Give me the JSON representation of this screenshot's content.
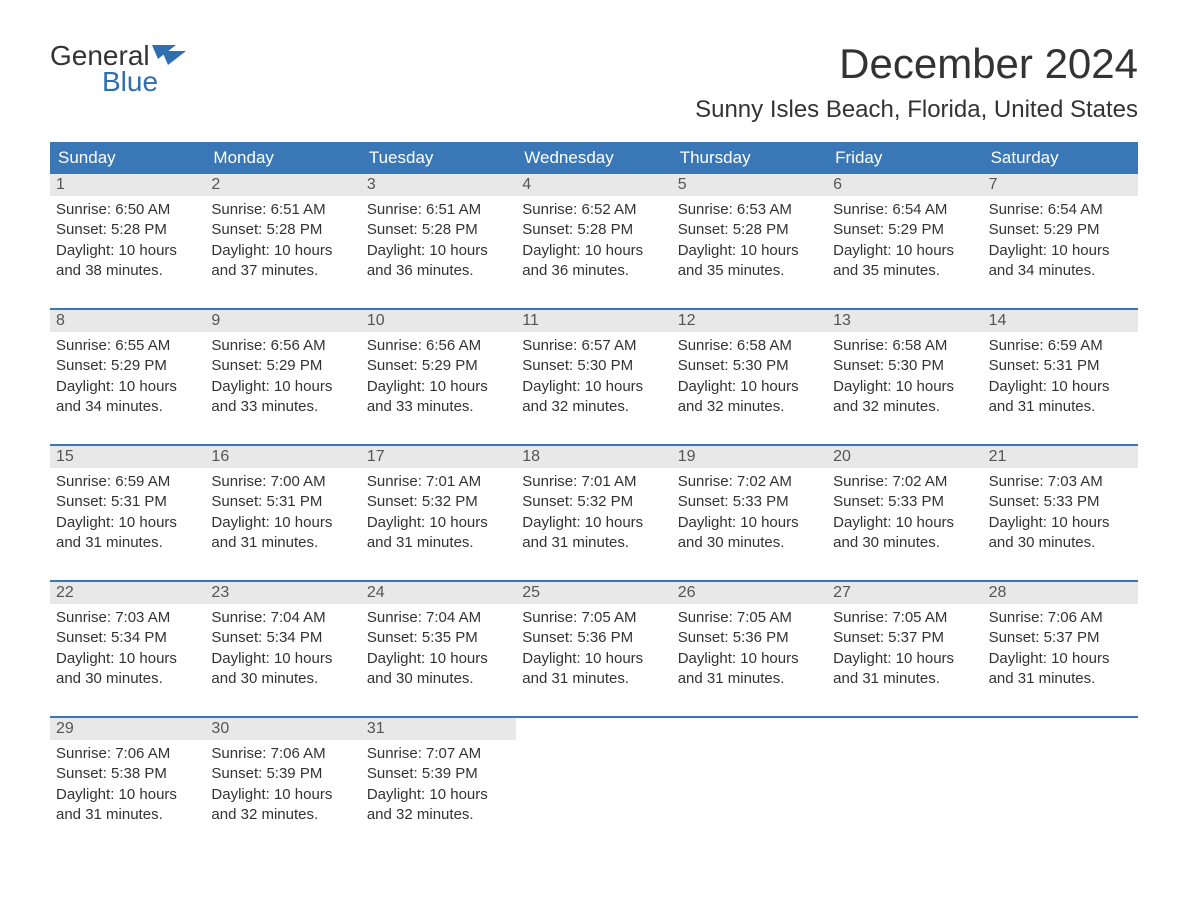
{
  "logo": {
    "line1": "General",
    "line2": "Blue",
    "brand_color": "#2f6fb0"
  },
  "title": "December 2024",
  "location": "Sunny Isles Beach, Florida, United States",
  "colors": {
    "header_bg": "#3a77b6",
    "header_text": "#ffffff",
    "daynum_bg": "#e8e8e8",
    "week_border": "#3a77b6",
    "text": "#333333",
    "background": "#ffffff"
  },
  "day_names": [
    "Sunday",
    "Monday",
    "Tuesday",
    "Wednesday",
    "Thursday",
    "Friday",
    "Saturday"
  ],
  "labels": {
    "sunrise": "Sunrise:",
    "sunset": "Sunset:",
    "daylight": "Daylight:"
  },
  "days": [
    {
      "n": 1,
      "sunrise": "6:50 AM",
      "sunset": "5:28 PM",
      "daylight": "10 hours and 38 minutes."
    },
    {
      "n": 2,
      "sunrise": "6:51 AM",
      "sunset": "5:28 PM",
      "daylight": "10 hours and 37 minutes."
    },
    {
      "n": 3,
      "sunrise": "6:51 AM",
      "sunset": "5:28 PM",
      "daylight": "10 hours and 36 minutes."
    },
    {
      "n": 4,
      "sunrise": "6:52 AM",
      "sunset": "5:28 PM",
      "daylight": "10 hours and 36 minutes."
    },
    {
      "n": 5,
      "sunrise": "6:53 AM",
      "sunset": "5:28 PM",
      "daylight": "10 hours and 35 minutes."
    },
    {
      "n": 6,
      "sunrise": "6:54 AM",
      "sunset": "5:29 PM",
      "daylight": "10 hours and 35 minutes."
    },
    {
      "n": 7,
      "sunrise": "6:54 AM",
      "sunset": "5:29 PM",
      "daylight": "10 hours and 34 minutes."
    },
    {
      "n": 8,
      "sunrise": "6:55 AM",
      "sunset": "5:29 PM",
      "daylight": "10 hours and 34 minutes."
    },
    {
      "n": 9,
      "sunrise": "6:56 AM",
      "sunset": "5:29 PM",
      "daylight": "10 hours and 33 minutes."
    },
    {
      "n": 10,
      "sunrise": "6:56 AM",
      "sunset": "5:29 PM",
      "daylight": "10 hours and 33 minutes."
    },
    {
      "n": 11,
      "sunrise": "6:57 AM",
      "sunset": "5:30 PM",
      "daylight": "10 hours and 32 minutes."
    },
    {
      "n": 12,
      "sunrise": "6:58 AM",
      "sunset": "5:30 PM",
      "daylight": "10 hours and 32 minutes."
    },
    {
      "n": 13,
      "sunrise": "6:58 AM",
      "sunset": "5:30 PM",
      "daylight": "10 hours and 32 minutes."
    },
    {
      "n": 14,
      "sunrise": "6:59 AM",
      "sunset": "5:31 PM",
      "daylight": "10 hours and 31 minutes."
    },
    {
      "n": 15,
      "sunrise": "6:59 AM",
      "sunset": "5:31 PM",
      "daylight": "10 hours and 31 minutes."
    },
    {
      "n": 16,
      "sunrise": "7:00 AM",
      "sunset": "5:31 PM",
      "daylight": "10 hours and 31 minutes."
    },
    {
      "n": 17,
      "sunrise": "7:01 AM",
      "sunset": "5:32 PM",
      "daylight": "10 hours and 31 minutes."
    },
    {
      "n": 18,
      "sunrise": "7:01 AM",
      "sunset": "5:32 PM",
      "daylight": "10 hours and 31 minutes."
    },
    {
      "n": 19,
      "sunrise": "7:02 AM",
      "sunset": "5:33 PM",
      "daylight": "10 hours and 30 minutes."
    },
    {
      "n": 20,
      "sunrise": "7:02 AM",
      "sunset": "5:33 PM",
      "daylight": "10 hours and 30 minutes."
    },
    {
      "n": 21,
      "sunrise": "7:03 AM",
      "sunset": "5:33 PM",
      "daylight": "10 hours and 30 minutes."
    },
    {
      "n": 22,
      "sunrise": "7:03 AM",
      "sunset": "5:34 PM",
      "daylight": "10 hours and 30 minutes."
    },
    {
      "n": 23,
      "sunrise": "7:04 AM",
      "sunset": "5:34 PM",
      "daylight": "10 hours and 30 minutes."
    },
    {
      "n": 24,
      "sunrise": "7:04 AM",
      "sunset": "5:35 PM",
      "daylight": "10 hours and 30 minutes."
    },
    {
      "n": 25,
      "sunrise": "7:05 AM",
      "sunset": "5:36 PM",
      "daylight": "10 hours and 31 minutes."
    },
    {
      "n": 26,
      "sunrise": "7:05 AM",
      "sunset": "5:36 PM",
      "daylight": "10 hours and 31 minutes."
    },
    {
      "n": 27,
      "sunrise": "7:05 AM",
      "sunset": "5:37 PM",
      "daylight": "10 hours and 31 minutes."
    },
    {
      "n": 28,
      "sunrise": "7:06 AM",
      "sunset": "5:37 PM",
      "daylight": "10 hours and 31 minutes."
    },
    {
      "n": 29,
      "sunrise": "7:06 AM",
      "sunset": "5:38 PM",
      "daylight": "10 hours and 31 minutes."
    },
    {
      "n": 30,
      "sunrise": "7:06 AM",
      "sunset": "5:39 PM",
      "daylight": "10 hours and 32 minutes."
    },
    {
      "n": 31,
      "sunrise": "7:07 AM",
      "sunset": "5:39 PM",
      "daylight": "10 hours and 32 minutes."
    }
  ],
  "first_weekday_offset": 0,
  "total_cells": 35
}
